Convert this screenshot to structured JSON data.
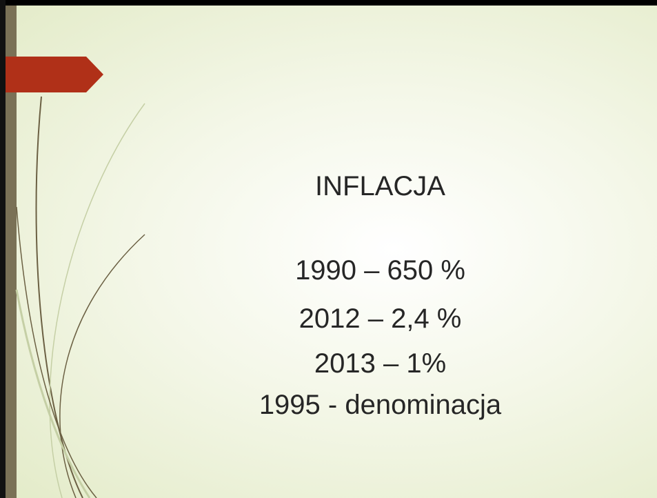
{
  "title": "INFLACJA",
  "lines": [
    "1990 – 650 %",
    "2012 – 2,4 %",
    "2013 – 1%",
    "1995 - denominacja"
  ]
}
